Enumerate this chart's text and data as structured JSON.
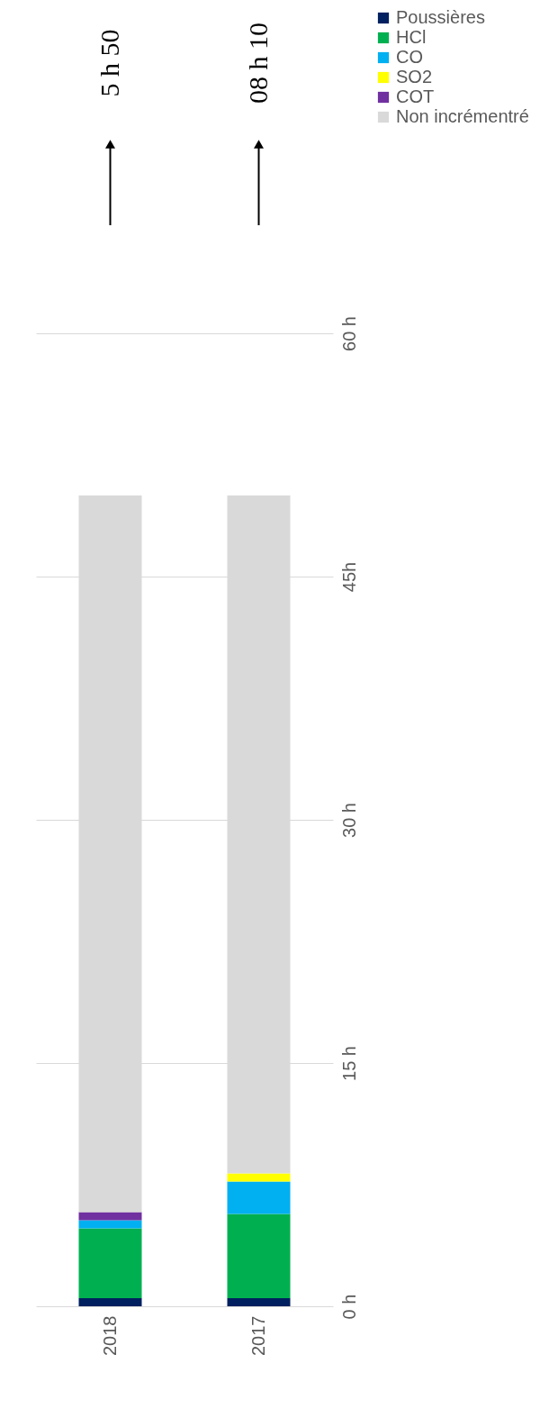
{
  "chart_data": {
    "type": "bar",
    "stacked": true,
    "categories": [
      "2018",
      "2017"
    ],
    "series": [
      {
        "name": "Poussières",
        "color": "#002060",
        "values": [
          0.5,
          0.5
        ]
      },
      {
        "name": "HCl",
        "color": "#00b050",
        "values": [
          4.3,
          5.2
        ]
      },
      {
        "name": "CO",
        "color": "#00b0f0",
        "values": [
          0.5,
          2.0
        ]
      },
      {
        "name": "SO2",
        "color": "#ffff00",
        "values": [
          0,
          0.5
        ]
      },
      {
        "name": "COT",
        "color": "#7030a0",
        "values": [
          0.5,
          0
        ]
      },
      {
        "name": "Non incrémentré",
        "color": "#d9d9d9",
        "values": [
          44.2,
          41.8
        ]
      }
    ],
    "ylim": [
      0,
      60
    ],
    "yticks": [
      {
        "value": 0,
        "label": "0 h"
      },
      {
        "value": 15,
        "label": "15 h"
      },
      {
        "value": 30,
        "label": "30 h"
      },
      {
        "value": 45,
        "label": "45h"
      },
      {
        "value": 60,
        "label": "60 h"
      }
    ],
    "grid": "y",
    "legend": "right",
    "annotations": [
      "5 h 50",
      "08 h 10"
    ]
  }
}
